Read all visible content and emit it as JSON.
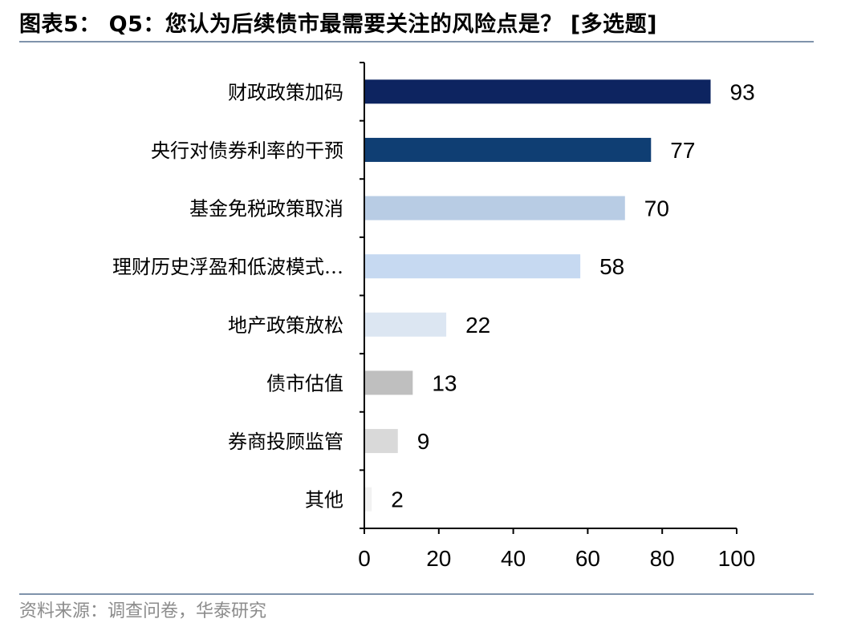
{
  "header": {
    "title": "图表5： Q5：您认为后续债市最需要关注的风险点是？ [多选题]"
  },
  "footer": {
    "source": "资料来源：调查问卷，华泰研究"
  },
  "chart_data": {
    "type": "bar",
    "orientation": "horizontal",
    "title": "Q5：您认为后续债市最需要关注的风险点是？ [多选题]",
    "categories": [
      "财政政策加码",
      "央行对债券利率的干预",
      "基金免税政策取消",
      "理财历史浮盈和低波模式…",
      "地产政策放松",
      "债市估值",
      "券商投顾监管",
      "其他"
    ],
    "values": [
      93,
      77,
      70,
      58,
      22,
      13,
      9,
      2
    ],
    "bar_colors": [
      "#0d2460",
      "#0f3e73",
      "#b8cce4",
      "#c6d9f1",
      "#dce6f2",
      "#bfbfbf",
      "#d9d9d9",
      "#f2f2f2"
    ],
    "xlim": [
      0,
      100
    ],
    "xticks": [
      "0",
      "20",
      "40",
      "60",
      "80",
      "100"
    ],
    "xlabel": "",
    "ylabel": "",
    "data_labels": true,
    "grid": false,
    "legend": "none"
  }
}
